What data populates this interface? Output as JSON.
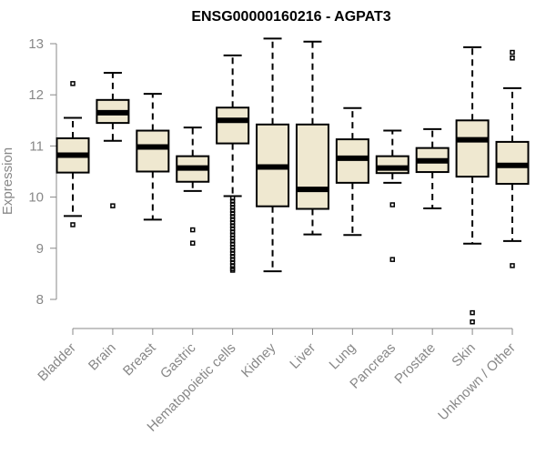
{
  "chart_data": {
    "type": "boxplot",
    "title": "ENSG00000160216 - AGPAT3",
    "xlabel": "",
    "ylabel": "Expression",
    "ylim": [
      7.5,
      13.1
    ],
    "yticks": [
      8,
      9,
      10,
      11,
      12,
      13
    ],
    "colors": {
      "box_fill": "#efe8d0",
      "stroke": "#000000",
      "axis": "#888888"
    },
    "categories": [
      "Bladder",
      "Brain",
      "Breast",
      "Gastric",
      "Hematopoietic cells",
      "Kidney",
      "Liver",
      "Lung",
      "Pancreas",
      "Prostate",
      "Skin",
      "Unknown / Other"
    ],
    "boxes": [
      {
        "q1": 10.48,
        "median": 10.82,
        "q3": 11.15,
        "whisker_low": 9.63,
        "whisker_high": 11.55,
        "outliers": [
          12.22,
          9.46
        ]
      },
      {
        "q1": 11.45,
        "median": 11.65,
        "q3": 11.9,
        "whisker_low": 11.1,
        "whisker_high": 12.43,
        "outliers": [
          9.83
        ]
      },
      {
        "q1": 10.5,
        "median": 10.98,
        "q3": 11.3,
        "whisker_low": 9.56,
        "whisker_high": 12.02,
        "outliers": []
      },
      {
        "q1": 10.3,
        "median": 10.57,
        "q3": 10.8,
        "whisker_low": 10.12,
        "whisker_high": 11.36,
        "outliers": [
          9.36,
          9.1
        ]
      },
      {
        "q1": 11.05,
        "median": 11.5,
        "q3": 11.75,
        "whisker_low": 10.02,
        "whisker_high": 12.77,
        "outliers": [
          9.98,
          9.92,
          9.86,
          9.8,
          9.74,
          9.68,
          9.62,
          9.56,
          9.5,
          9.44,
          9.38,
          9.32,
          9.26,
          9.2,
          9.14,
          9.08,
          9.02,
          8.96,
          8.9,
          8.84,
          8.78,
          8.72,
          8.66,
          8.6,
          8.57
        ]
      },
      {
        "q1": 9.82,
        "median": 10.59,
        "q3": 11.42,
        "whisker_low": 8.55,
        "whisker_high": 13.1,
        "outliers": []
      },
      {
        "q1": 9.77,
        "median": 10.15,
        "q3": 11.42,
        "whisker_low": 9.27,
        "whisker_high": 13.04,
        "outliers": []
      },
      {
        "q1": 10.28,
        "median": 10.76,
        "q3": 11.13,
        "whisker_low": 9.26,
        "whisker_high": 11.74,
        "outliers": []
      },
      {
        "q1": 10.47,
        "median": 10.57,
        "q3": 10.8,
        "whisker_low": 10.28,
        "whisker_high": 11.3,
        "outliers": [
          9.85,
          8.78
        ]
      },
      {
        "q1": 10.49,
        "median": 10.71,
        "q3": 10.96,
        "whisker_low": 9.78,
        "whisker_high": 11.33,
        "outliers": []
      },
      {
        "q1": 10.4,
        "median": 11.12,
        "q3": 11.5,
        "whisker_low": 9.09,
        "whisker_high": 12.93,
        "outliers": [
          7.74,
          7.56
        ]
      },
      {
        "q1": 10.26,
        "median": 10.62,
        "q3": 11.08,
        "whisker_low": 9.14,
        "whisker_high": 12.13,
        "outliers": [
          12.83,
          12.72,
          8.66
        ]
      }
    ]
  }
}
